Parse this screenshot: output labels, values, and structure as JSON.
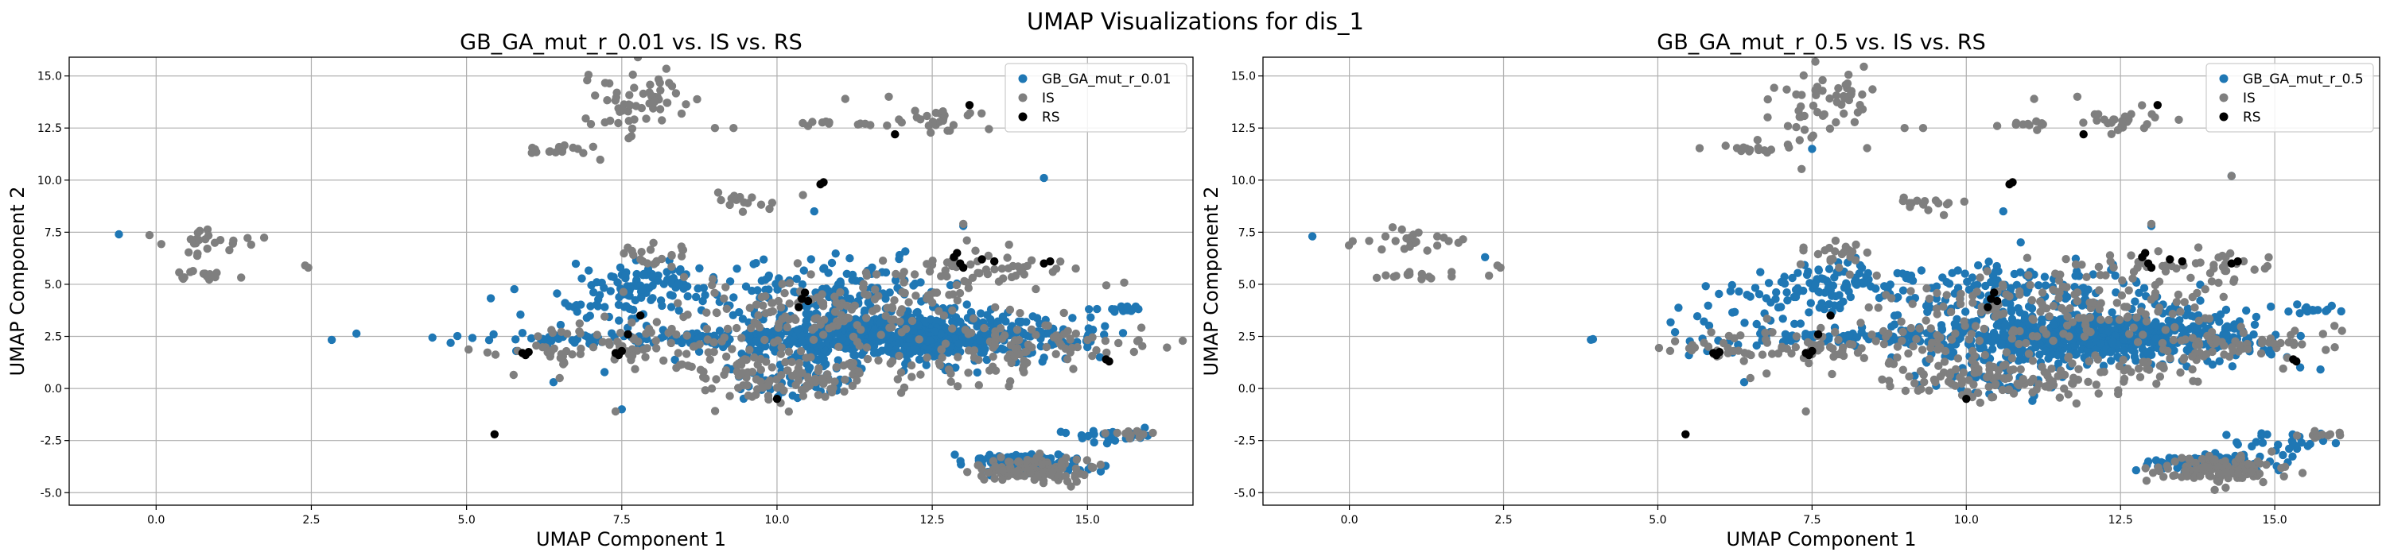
{
  "figure_title": "UMAP Visualizations for dis_1",
  "colors": {
    "generated": "#1f77b4",
    "IS": "#7f7f7f",
    "RS": "#000000",
    "grid": "#b0b0b0"
  },
  "chart_data": [
    {
      "type": "scatter",
      "title": "GB_GA_mut_r_0.01 vs. IS vs. RS",
      "xlabel": "UMAP Component 1",
      "ylabel": "UMAP Component 2",
      "xlim": [
        -1.4,
        16.7
      ],
      "ylim": [
        -5.6,
        15.9
      ],
      "xticks": [
        "0.0",
        "2.5",
        "5.0",
        "7.5",
        "10.0",
        "12.5",
        "15.0"
      ],
      "yticks": [
        "-5.0",
        "-2.5",
        "0.0",
        "2.5",
        "5.0",
        "7.5",
        "10.0",
        "12.5",
        "15.0"
      ],
      "grid": true,
      "legend_position": "top-right",
      "legend": [
        "GB_GA_mut_r_0.01",
        "IS",
        "RS"
      ],
      "series": [
        {
          "name": "GB_GA_mut_r_0.01",
          "clusters": [
            {
              "cx": 12.0,
              "cy": 2.5,
              "sx": 1.4,
              "sy": 0.55,
              "n": 700
            },
            {
              "cx": 9.2,
              "cy": 2.4,
              "sx": 2.0,
              "sy": 0.15,
              "n": 120
            },
            {
              "cx": 8.0,
              "cy": 5.0,
              "sx": 0.5,
              "sy": 0.6,
              "n": 90
            },
            {
              "cx": 11.0,
              "cy": 4.5,
              "sx": 1.0,
              "sy": 0.8,
              "n": 150
            },
            {
              "cx": 14.0,
              "cy": -3.6,
              "sx": 0.5,
              "sy": 0.25,
              "n": 110
            },
            {
              "cx": 15.3,
              "cy": -2.2,
              "sx": 0.4,
              "sy": 0.2,
              "n": 25
            },
            {
              "cx": 15.5,
              "cy": 3.8,
              "sx": 0.25,
              "sy": 0.08,
              "n": 15
            },
            {
              "cx": 7.0,
              "cy": 4.0,
              "sx": 0.8,
              "sy": 1.0,
              "n": 40
            },
            {
              "cx": 10.3,
              "cy": 0.5,
              "sx": 0.6,
              "sy": 0.5,
              "n": 50
            }
          ],
          "points": [
            [
              -0.6,
              7.4
            ],
            [
              7.5,
              -1.0
            ],
            [
              14.3,
              10.1
            ],
            [
              10.6,
              8.5
            ],
            [
              6.3,
              2.1
            ],
            [
              5.8,
              1.8
            ],
            [
              13.0,
              7.8
            ],
            [
              15.2,
              1.5
            ],
            [
              6.4,
              0.3
            ]
          ]
        },
        {
          "name": "IS",
          "clusters": [
            {
              "cx": 10.3,
              "cy": 0.5,
              "sx": 0.9,
              "sy": 0.6,
              "n": 110
            },
            {
              "cx": 11.2,
              "cy": 3.8,
              "sx": 1.4,
              "sy": 0.9,
              "n": 160
            },
            {
              "cx": 8.0,
              "cy": 2.0,
              "sx": 1.2,
              "sy": 0.5,
              "n": 90
            },
            {
              "cx": 14.1,
              "cy": -3.9,
              "sx": 0.45,
              "sy": 0.3,
              "n": 130
            },
            {
              "cx": 14.3,
              "cy": 2.2,
              "sx": 0.8,
              "sy": 0.4,
              "n": 60
            },
            {
              "cx": 13.3,
              "cy": 5.8,
              "sx": 0.8,
              "sy": 0.4,
              "n": 50
            },
            {
              "cx": 7.6,
              "cy": 13.5,
              "sx": 0.4,
              "sy": 1.0,
              "n": 45
            },
            {
              "cx": 8.1,
              "cy": 14.2,
              "sx": 0.15,
              "sy": 0.5,
              "n": 15
            },
            {
              "cx": 12.6,
              "cy": 12.9,
              "sx": 0.35,
              "sy": 0.3,
              "n": 25
            },
            {
              "cx": 6.5,
              "cy": 11.5,
              "sx": 0.3,
              "sy": 0.15,
              "n": 15
            },
            {
              "cx": 9.5,
              "cy": 9.0,
              "sx": 0.3,
              "sy": 0.2,
              "n": 15
            },
            {
              "cx": 0.9,
              "cy": 7.1,
              "sx": 0.5,
              "sy": 0.3,
              "n": 25
            },
            {
              "cx": 0.8,
              "cy": 5.4,
              "sx": 0.4,
              "sy": 0.1,
              "n": 15
            },
            {
              "cx": 8.0,
              "cy": 6.5,
              "sx": 0.3,
              "sy": 0.3,
              "n": 20
            },
            {
              "cx": 6.2,
              "cy": 1.8,
              "sx": 0.4,
              "sy": 0.15,
              "n": 15
            },
            {
              "cx": 15.8,
              "cy": -2.2,
              "sx": 0.25,
              "sy": 0.1,
              "n": 10
            },
            {
              "cx": 13.0,
              "cy": 1.0,
              "sx": 0.8,
              "sy": 0.5,
              "n": 40
            },
            {
              "cx": 11.0,
              "cy": 12.7,
              "sx": 0.3,
              "sy": 0.1,
              "n": 10
            }
          ],
          "points": [
            [
              2.4,
              5.9
            ],
            [
              2.45,
              5.8
            ],
            [
              11.1,
              13.9
            ],
            [
              11.8,
              14.0
            ],
            [
              9.0,
              12.5
            ],
            [
              9.3,
              12.5
            ],
            [
              10.5,
              12.6
            ],
            [
              13.0,
              7.9
            ],
            [
              6.5,
              0.5
            ],
            [
              7.4,
              -1.1
            ],
            [
              15.9,
              -2.2
            ],
            [
              7.8,
              6.2
            ]
          ]
        },
        {
          "name": "RS",
          "points": [
            [
              5.45,
              -2.2
            ],
            [
              5.9,
              1.7
            ],
            [
              6.0,
              1.75
            ],
            [
              5.95,
              1.6
            ],
            [
              7.4,
              1.7
            ],
            [
              7.5,
              1.8
            ],
            [
              7.45,
              1.6
            ],
            [
              7.6,
              2.6
            ],
            [
              7.8,
              3.5
            ],
            [
              10.0,
              -0.5
            ],
            [
              10.4,
              4.3
            ],
            [
              10.45,
              4.6
            ],
            [
              10.5,
              4.2
            ],
            [
              10.35,
              3.9
            ],
            [
              10.7,
              9.8
            ],
            [
              10.75,
              9.9
            ],
            [
              11.9,
              12.2
            ],
            [
              12.85,
              6.3
            ],
            [
              12.9,
              6.5
            ],
            [
              12.95,
              6.0
            ],
            [
              13.0,
              5.8
            ],
            [
              13.3,
              6.2
            ],
            [
              13.5,
              6.1
            ],
            [
              14.3,
              6.0
            ],
            [
              14.4,
              6.1
            ],
            [
              15.3,
              1.4
            ],
            [
              15.35,
              1.3
            ],
            [
              13.1,
              13.6
            ]
          ]
        }
      ]
    },
    {
      "type": "scatter",
      "title": "GB_GA_mut_r_0.5 vs. IS vs. RS",
      "xlabel": "UMAP Component 1",
      "ylabel": "UMAP Component 2",
      "xlim": [
        -1.4,
        16.7
      ],
      "ylim": [
        -5.6,
        15.9
      ],
      "xticks": [
        "0.0",
        "2.5",
        "5.0",
        "7.5",
        "10.0",
        "12.5",
        "15.0"
      ],
      "yticks": [
        "-5.0",
        "-2.5",
        "0.0",
        "2.5",
        "5.0",
        "7.5",
        "10.0",
        "12.5",
        "15.0"
      ],
      "grid": true,
      "legend_position": "top-right",
      "legend": [
        "GB_GA_mut_r_0.5",
        "IS",
        "RS"
      ],
      "series": [
        {
          "name": "GB_GA_mut_r_0.5",
          "clusters": [
            {
              "cx": 12.0,
              "cy": 2.5,
              "sx": 1.4,
              "sy": 0.6,
              "n": 700
            },
            {
              "cx": 9.2,
              "cy": 2.4,
              "sx": 2.0,
              "sy": 0.15,
              "n": 110
            },
            {
              "cx": 8.0,
              "cy": 5.0,
              "sx": 0.5,
              "sy": 0.6,
              "n": 90
            },
            {
              "cx": 11.0,
              "cy": 4.5,
              "sx": 1.0,
              "sy": 0.8,
              "n": 150
            },
            {
              "cx": 14.0,
              "cy": -3.6,
              "sx": 0.5,
              "sy": 0.25,
              "n": 110
            },
            {
              "cx": 15.0,
              "cy": -2.5,
              "sx": 0.5,
              "sy": 0.3,
              "n": 25
            },
            {
              "cx": 15.5,
              "cy": 3.8,
              "sx": 0.25,
              "sy": 0.08,
              "n": 15
            },
            {
              "cx": 6.8,
              "cy": 4.0,
              "sx": 0.8,
              "sy": 1.0,
              "n": 45
            },
            {
              "cx": 10.3,
              "cy": 0.5,
              "sx": 0.6,
              "sy": 0.5,
              "n": 45
            }
          ],
          "points": [
            [
              -0.6,
              7.3
            ],
            [
              2.2,
              6.3
            ],
            [
              7.5,
              11.5
            ],
            [
              10.6,
              8.5
            ],
            [
              6.3,
              2.1
            ],
            [
              5.8,
              1.8
            ],
            [
              13.0,
              7.8
            ],
            [
              15.2,
              1.5
            ],
            [
              6.4,
              0.3
            ],
            [
              14.3,
              10.2
            ]
          ]
        },
        {
          "name": "IS",
          "clusters": [
            {
              "cx": 10.3,
              "cy": 0.5,
              "sx": 0.9,
              "sy": 0.6,
              "n": 110
            },
            {
              "cx": 11.2,
              "cy": 3.8,
              "sx": 1.4,
              "sy": 0.9,
              "n": 160
            },
            {
              "cx": 8.0,
              "cy": 2.0,
              "sx": 1.2,
              "sy": 0.5,
              "n": 90
            },
            {
              "cx": 14.1,
              "cy": -3.9,
              "sx": 0.45,
              "sy": 0.3,
              "n": 130
            },
            {
              "cx": 14.3,
              "cy": 2.2,
              "sx": 0.8,
              "sy": 0.4,
              "n": 60
            },
            {
              "cx": 13.3,
              "cy": 5.8,
              "sx": 0.8,
              "sy": 0.4,
              "n": 50
            },
            {
              "cx": 7.6,
              "cy": 13.5,
              "sx": 0.4,
              "sy": 1.0,
              "n": 45
            },
            {
              "cx": 8.1,
              "cy": 14.2,
              "sx": 0.15,
              "sy": 0.5,
              "n": 15
            },
            {
              "cx": 12.6,
              "cy": 12.9,
              "sx": 0.35,
              "sy": 0.3,
              "n": 25
            },
            {
              "cx": 6.5,
              "cy": 11.5,
              "sx": 0.3,
              "sy": 0.15,
              "n": 15
            },
            {
              "cx": 9.5,
              "cy": 9.0,
              "sx": 0.3,
              "sy": 0.2,
              "n": 15
            },
            {
              "cx": 0.9,
              "cy": 7.1,
              "sx": 0.5,
              "sy": 0.3,
              "n": 25
            },
            {
              "cx": 0.8,
              "cy": 5.4,
              "sx": 0.4,
              "sy": 0.1,
              "n": 15
            },
            {
              "cx": 8.0,
              "cy": 6.5,
              "sx": 0.3,
              "sy": 0.3,
              "n": 20
            },
            {
              "cx": 6.2,
              "cy": 1.8,
              "sx": 0.4,
              "sy": 0.15,
              "n": 15
            },
            {
              "cx": 15.8,
              "cy": -2.2,
              "sx": 0.25,
              "sy": 0.1,
              "n": 10
            },
            {
              "cx": 13.0,
              "cy": 1.0,
              "sx": 0.8,
              "sy": 0.5,
              "n": 40
            },
            {
              "cx": 11.0,
              "cy": 12.7,
              "sx": 0.3,
              "sy": 0.1,
              "n": 10
            }
          ],
          "points": [
            [
              2.4,
              5.9
            ],
            [
              2.45,
              5.8
            ],
            [
              11.1,
              13.9
            ],
            [
              11.8,
              14.0
            ],
            [
              9.0,
              12.5
            ],
            [
              9.3,
              12.5
            ],
            [
              10.5,
              12.6
            ],
            [
              13.0,
              7.9
            ],
            [
              6.5,
              0.5
            ],
            [
              7.4,
              -1.1
            ],
            [
              15.9,
              -2.2
            ],
            [
              7.8,
              6.2
            ],
            [
              14.3,
              10.2
            ]
          ]
        },
        {
          "name": "RS",
          "points": [
            [
              5.45,
              -2.2
            ],
            [
              5.9,
              1.7
            ],
            [
              6.0,
              1.75
            ],
            [
              5.95,
              1.6
            ],
            [
              7.4,
              1.7
            ],
            [
              7.5,
              1.8
            ],
            [
              7.45,
              1.6
            ],
            [
              7.6,
              2.6
            ],
            [
              7.8,
              3.5
            ],
            [
              10.0,
              -0.5
            ],
            [
              10.4,
              4.3
            ],
            [
              10.45,
              4.6
            ],
            [
              10.5,
              4.2
            ],
            [
              10.35,
              3.9
            ],
            [
              10.7,
              9.8
            ],
            [
              10.75,
              9.9
            ],
            [
              11.9,
              12.2
            ],
            [
              12.85,
              6.3
            ],
            [
              12.9,
              6.5
            ],
            [
              12.95,
              6.0
            ],
            [
              13.0,
              5.8
            ],
            [
              13.3,
              6.2
            ],
            [
              13.5,
              6.1
            ],
            [
              14.3,
              6.0
            ],
            [
              14.4,
              6.1
            ],
            [
              15.3,
              1.4
            ],
            [
              15.35,
              1.3
            ],
            [
              13.1,
              13.6
            ]
          ]
        }
      ]
    }
  ]
}
